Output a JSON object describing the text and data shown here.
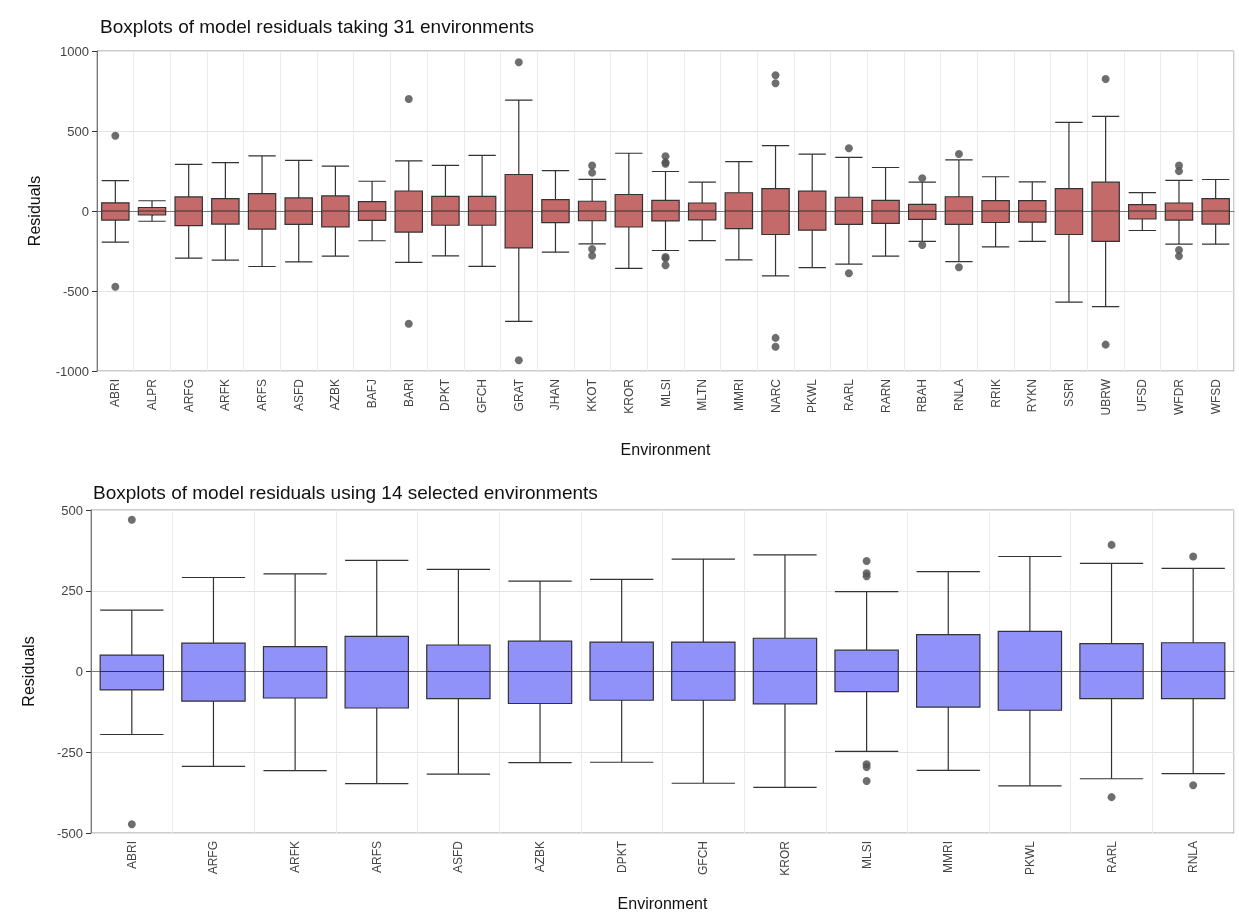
{
  "chart_data": [
    {
      "type": "box",
      "title": "Boxplots of model residuals taking 31 environments",
      "xlabel": "Environment",
      "ylabel": "Residuals",
      "color": "#c46a6a",
      "ylim": [
        -1000,
        1000
      ],
      "yticks": [
        -1000,
        -500,
        0,
        500,
        1000
      ],
      "grid": true,
      "categories": [
        "ABRI",
        "ALPR",
        "ARFG",
        "ARFK",
        "ARFS",
        "ASFD",
        "AZBK",
        "BAFJ",
        "BARI",
        "DPKT",
        "GFCH",
        "GRAT",
        "JHAN",
        "KKOT",
        "KROR",
        "MLSI",
        "MLTN",
        "MMRI",
        "NARC",
        "PKWL",
        "RARL",
        "RARN",
        "RBAH",
        "RNLA",
        "RRIK",
        "RYKN",
        "SSRI",
        "UBRW",
        "UFSD",
        "WFDR",
        "WFSD"
      ],
      "boxes": [
        {
          "low": -195,
          "q1": -57,
          "median": 0,
          "q3": 51,
          "high": 190,
          "outliers": [
            470,
            -473
          ]
        },
        {
          "low": -64,
          "q1": -25,
          "median": 0,
          "q3": 22,
          "high": 64
        },
        {
          "low": -294,
          "q1": -92,
          "median": 0,
          "q3": 88,
          "high": 291
        },
        {
          "low": -307,
          "q1": -82,
          "median": 0,
          "q3": 77,
          "high": 302
        },
        {
          "low": -347,
          "q1": -113,
          "median": 0,
          "q3": 109,
          "high": 344
        },
        {
          "low": -318,
          "q1": -84,
          "median": 0,
          "q3": 82,
          "high": 316
        },
        {
          "low": -282,
          "q1": -99,
          "median": 0,
          "q3": 94,
          "high": 280
        },
        {
          "low": -186,
          "q1": -59,
          "median": 0,
          "q3": 59,
          "high": 186
        },
        {
          "low": -321,
          "q1": -132,
          "median": 0,
          "q3": 125,
          "high": 313,
          "outliers": [
            700,
            -705
          ]
        },
        {
          "low": -281,
          "q1": -89,
          "median": 0,
          "q3": 91,
          "high": 285
        },
        {
          "low": -346,
          "q1": -89,
          "median": 0,
          "q3": 91,
          "high": 348
        },
        {
          "low": -690,
          "q1": -230,
          "median": 0,
          "q3": 228,
          "high": 693,
          "outliers": [
            930,
            -933
          ]
        },
        {
          "low": -257,
          "q1": -73,
          "median": 0,
          "q3": 71,
          "high": 252
        },
        {
          "low": -205,
          "q1": -61,
          "median": 0,
          "q3": 61,
          "high": 198,
          "outliers": [
            284,
            240,
            -237,
            -279
          ]
        },
        {
          "low": -359,
          "q1": -100,
          "median": 0,
          "q3": 103,
          "high": 361
        },
        {
          "low": -247,
          "q1": -62,
          "median": 0,
          "q3": 66,
          "high": 247,
          "outliers": [
            342,
            304,
            295,
            -287,
            -296,
            -339
          ]
        },
        {
          "low": -185,
          "q1": -55,
          "median": 0,
          "q3": 50,
          "high": 180
        },
        {
          "low": -306,
          "q1": -110,
          "median": 0,
          "q3": 114,
          "high": 309
        },
        {
          "low": -406,
          "q1": -147,
          "median": 0,
          "q3": 140,
          "high": 409,
          "outliers": [
            848,
            798,
            -793,
            -848
          ]
        },
        {
          "low": -354,
          "q1": -120,
          "median": 0,
          "q3": 124,
          "high": 356
        },
        {
          "low": -332,
          "q1": -84,
          "median": 0,
          "q3": 86,
          "high": 335,
          "outliers": [
            392,
            -389
          ]
        },
        {
          "low": -282,
          "q1": -77,
          "median": 0,
          "q3": 67,
          "high": 272
        },
        {
          "low": -190,
          "q1": -52,
          "median": 0,
          "q3": 42,
          "high": 180,
          "outliers": [
            205,
            -212
          ]
        },
        {
          "low": -316,
          "q1": -84,
          "median": 0,
          "q3": 89,
          "high": 319,
          "outliers": [
            356,
            -352
          ]
        },
        {
          "low": -224,
          "q1": -72,
          "median": 0,
          "q3": 65,
          "high": 214
        },
        {
          "low": -190,
          "q1": -70,
          "median": 0,
          "q3": 65,
          "high": 182
        },
        {
          "low": -569,
          "q1": -147,
          "median": 0,
          "q3": 140,
          "high": 554
        },
        {
          "low": -598,
          "q1": -190,
          "median": 0,
          "q3": 180,
          "high": 591,
          "outliers": [
            825,
            -835
          ]
        },
        {
          "low": -122,
          "q1": -50,
          "median": 0,
          "q3": 40,
          "high": 115
        },
        {
          "low": -207,
          "q1": -57,
          "median": 0,
          "q3": 50,
          "high": 192,
          "outliers": [
            284,
            249,
            -244,
            -282
          ]
        },
        {
          "low": -207,
          "q1": -82,
          "median": 0,
          "q3": 77,
          "high": 197
        }
      ]
    },
    {
      "type": "box",
      "title": "Boxplots of model residuals using 14 selected environments",
      "xlabel": "Environment",
      "ylabel": "Residuals",
      "color": "#9191fa",
      "ylim": [
        -500,
        500
      ],
      "yticks": [
        -500,
        -250,
        0,
        250,
        500
      ],
      "grid": true,
      "categories": [
        "ABRI",
        "ARFG",
        "ARFK",
        "ARFS",
        "ASFD",
        "AZBK",
        "DPKT",
        "GFCH",
        "KROR",
        "MLSI",
        "MMRI",
        "PKWL",
        "RARL",
        "RNLA"
      ],
      "boxes": [
        {
          "low": -195,
          "q1": -57,
          "median": 0,
          "q3": 51,
          "high": 190,
          "outliers": [
            470,
            -473
          ]
        },
        {
          "low": -294,
          "q1": -92,
          "median": 0,
          "q3": 88,
          "high": 291
        },
        {
          "low": -307,
          "q1": -82,
          "median": 0,
          "q3": 77,
          "high": 302
        },
        {
          "low": -347,
          "q1": -113,
          "median": 0,
          "q3": 109,
          "high": 344
        },
        {
          "low": -318,
          "q1": -84,
          "median": 0,
          "q3": 82,
          "high": 316
        },
        {
          "low": -282,
          "q1": -99,
          "median": 0,
          "q3": 94,
          "high": 280
        },
        {
          "low": -281,
          "q1": -89,
          "median": 0,
          "q3": 91,
          "high": 285
        },
        {
          "low": -346,
          "q1": -89,
          "median": 0,
          "q3": 91,
          "high": 348
        },
        {
          "low": -359,
          "q1": -100,
          "median": 0,
          "q3": 103,
          "high": 361
        },
        {
          "low": -247,
          "q1": -62,
          "median": 0,
          "q3": 66,
          "high": 247,
          "outliers": [
            342,
            304,
            295,
            -287,
            -296,
            -339
          ]
        },
        {
          "low": -306,
          "q1": -110,
          "median": 0,
          "q3": 114,
          "high": 309
        },
        {
          "low": -354,
          "q1": -120,
          "median": 0,
          "q3": 124,
          "high": 356
        },
        {
          "low": -332,
          "q1": -84,
          "median": 0,
          "q3": 86,
          "high": 335,
          "outliers": [
            392,
            -389
          ]
        },
        {
          "low": -316,
          "q1": -84,
          "median": 0,
          "q3": 89,
          "high": 319,
          "outliers": [
            356,
            -352
          ]
        }
      ]
    }
  ]
}
